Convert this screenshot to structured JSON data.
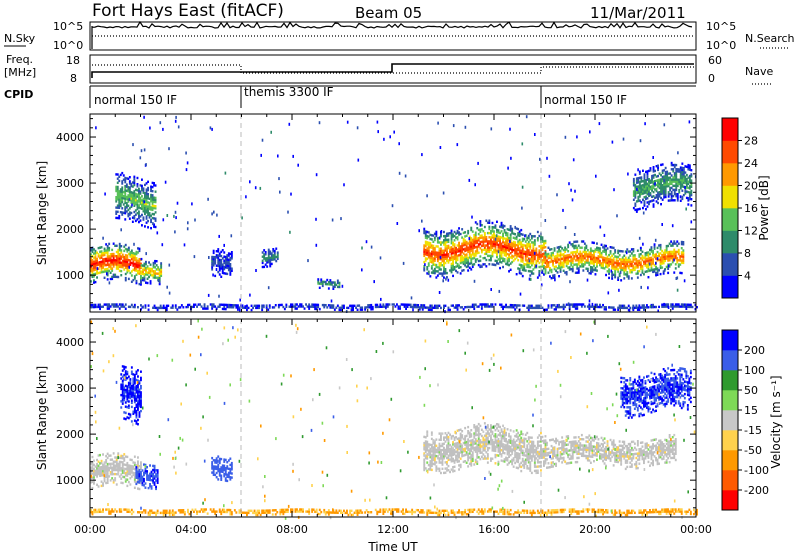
{
  "header": {
    "title": "Fort Hays East (fitACF)",
    "beam": "Beam 05",
    "date": "11/Mar/2011"
  },
  "nsky_panel": {
    "label": "N.Sky",
    "right_label": "N.Search",
    "left_ticks": [
      "10^5",
      "10^0"
    ],
    "right_ticks": [
      "10^5",
      "10^0"
    ]
  },
  "freq_panel": {
    "label_line1": "Freq.",
    "label_line2": "[MHz]",
    "left_ticks": [
      "18",
      "8"
    ],
    "right_ticks": [
      "60",
      "0"
    ],
    "right_label": "Nave"
  },
  "cpid_panel": {
    "label": "CPID",
    "segments": [
      {
        "start_hour": 0,
        "end_hour": 6,
        "label": "normal 150 IF"
      },
      {
        "start_hour": 6,
        "end_hour": 18,
        "label": "themis 3300 IF"
      },
      {
        "start_hour": 18,
        "end_hour": 24,
        "label": "normal 150 IF"
      }
    ]
  },
  "colors": {
    "power_scale": [
      "#0000ff",
      "#2b4fb0",
      "#2e8b6a",
      "#58c058",
      "#f0e000",
      "#ff9900",
      "#ff4a00",
      "#ff0000"
    ],
    "velocity_scale": [
      "#0000ff",
      "#3a5ee8",
      "#2f9a2f",
      "#7ed957",
      "#c8c8c8",
      "#ffd24d",
      "#ff9900",
      "#ff5a00",
      "#ff0000"
    ],
    "ground_scatter": "#c0c0c0"
  },
  "chart_data": [
    {
      "type": "heatmap",
      "panel": "power",
      "title": "",
      "xlabel": "",
      "ylabel": "Slant Range [km]",
      "xlim_hours": [
        0,
        24
      ],
      "ylim_km": [
        200,
        4500
      ],
      "y_ticks": [
        "1000",
        "2000",
        "3000",
        "4000"
      ],
      "colorbar": {
        "label": "Power [dB]",
        "ticks": [
          "4",
          "8",
          "12",
          "16",
          "20",
          "24",
          "28"
        ],
        "range": [
          0,
          30
        ]
      },
      "echo_regions": [
        {
          "t0": 0.0,
          "t1": 2.0,
          "r_center": 1200,
          "r_halfwidth": 400,
          "peak_db": 28
        },
        {
          "t0": 2.0,
          "t1": 2.8,
          "r_center": 1100,
          "r_halfwidth": 250,
          "peak_db": 20
        },
        {
          "t0": 1.0,
          "t1": 2.6,
          "r_center": 2600,
          "r_halfwidth": 500,
          "peak_db": 14
        },
        {
          "t0": 4.8,
          "t1": 5.6,
          "r_center": 1200,
          "r_halfwidth": 300,
          "peak_db": 6
        },
        {
          "t0": 6.8,
          "t1": 7.4,
          "r_center": 1400,
          "r_halfwidth": 200,
          "peak_db": 10
        },
        {
          "t0": 9.0,
          "t1": 9.9,
          "r_center": 800,
          "r_halfwidth": 100,
          "peak_db": 12
        },
        {
          "t0": 13.2,
          "t1": 18.0,
          "r_center": 1550,
          "r_halfwidth": 500,
          "peak_db": 26
        },
        {
          "t0": 18.0,
          "t1": 23.5,
          "r_center": 1300,
          "r_halfwidth": 350,
          "peak_db": 24
        },
        {
          "t0": 21.5,
          "t1": 23.8,
          "r_center": 2900,
          "r_halfwidth": 450,
          "peak_db": 12
        },
        {
          "t0": 0.0,
          "t1": 24.0,
          "r_center": 300,
          "r_halfwidth": 60,
          "peak_db": 6
        }
      ]
    },
    {
      "type": "heatmap",
      "panel": "velocity",
      "title": "",
      "xlabel": "Time UT",
      "ylabel": "Slant Range [km]",
      "xlim_hours": [
        0,
        24
      ],
      "ylim_km": [
        200,
        4500
      ],
      "y_ticks": [
        "1000",
        "2000",
        "3000",
        "4000"
      ],
      "x_ticks": [
        "00:00",
        "04:00",
        "08:00",
        "12:00",
        "16:00",
        "20:00",
        "00:00"
      ],
      "colorbar": {
        "label": "Velocity [m s⁻¹]",
        "ticks": [
          "200",
          "100",
          "50",
          "15",
          "-15",
          "-50",
          "-100",
          "-200"
        ]
      },
      "echo_regions": [
        {
          "t0": 0.0,
          "t1": 2.0,
          "r_center": 1150,
          "r_halfwidth": 350,
          "velocity": 0,
          "ground_scatter": true
        },
        {
          "t0": 1.2,
          "t1": 2.0,
          "r_center": 2800,
          "r_halfwidth": 600,
          "velocity": 220
        },
        {
          "t0": 1.8,
          "t1": 2.7,
          "r_center": 1100,
          "r_halfwidth": 250,
          "velocity": 180
        },
        {
          "t0": 4.8,
          "t1": 5.6,
          "r_center": 1200,
          "r_halfwidth": 250,
          "velocity": 150
        },
        {
          "t0": 13.2,
          "t1": 18.0,
          "r_center": 1700,
          "r_halfwidth": 450,
          "velocity": 0,
          "ground_scatter": true
        },
        {
          "t0": 18.0,
          "t1": 23.2,
          "r_center": 1600,
          "r_halfwidth": 300,
          "velocity": 0,
          "ground_scatter": true
        },
        {
          "t0": 21.0,
          "t1": 23.8,
          "r_center": 2900,
          "r_halfwidth": 450,
          "velocity": 200
        },
        {
          "t0": 0.0,
          "t1": 24.0,
          "r_center": 300,
          "r_halfwidth": 60,
          "velocity": -60
        }
      ]
    }
  ]
}
